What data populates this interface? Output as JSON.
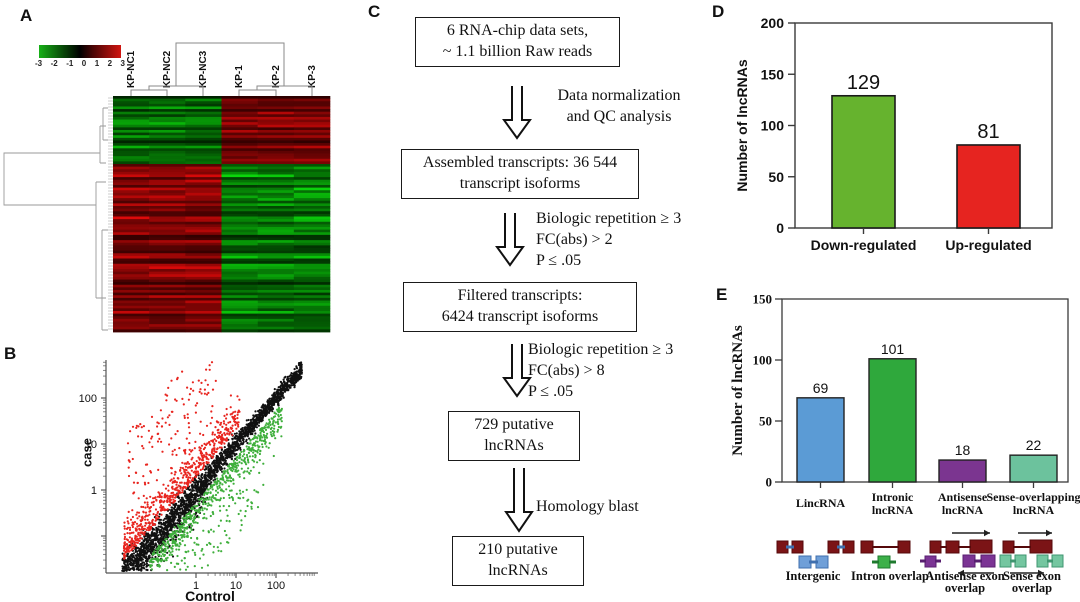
{
  "figure": {
    "panels": {
      "A": {
        "label": "A",
        "colorbar_ticks": [
          "-3",
          "-2",
          "-1",
          "0",
          "1",
          "2",
          "3"
        ],
        "columns": [
          "KP-NC1",
          "KP-NC2",
          "KP-NC3",
          "KP-1",
          "KP-2",
          "KP-3"
        ]
      },
      "B": {
        "label": "B",
        "xlabel": "Control",
        "ylabel": "case",
        "x_tick_labels": [
          "1",
          "10",
          "100"
        ],
        "y_tick_labels": [
          "1",
          "10",
          "100"
        ]
      },
      "C": {
        "label": "C",
        "boxes": [
          {
            "lines": [
              "6 RNA-chip data sets,",
              "~ 1.1 billion Raw reads"
            ]
          },
          {
            "lines": [
              "Assembled transcripts: 36 544",
              "transcript isoforms"
            ]
          },
          {
            "lines": [
              "Filtered transcripts:",
              "6424 transcript isoforms"
            ]
          },
          {
            "lines": [
              "729 putative",
              "lncRNAs"
            ]
          },
          {
            "lines": [
              "210 putative",
              "lncRNAs"
            ]
          }
        ],
        "arrows": [
          {
            "lines": [
              "Data normalization",
              "and QC analysis"
            ]
          },
          {
            "lines": [
              "Biologic repetition ≥ 3",
              "FC(abs) > 2",
              "P ≤ .05"
            ]
          },
          {
            "lines": [
              "Biologic repetition ≥ 3",
              "FC(abs) > 8",
              "P ≤ .05"
            ]
          },
          {
            "lines": [
              "Homology blast"
            ]
          }
        ]
      },
      "D": {
        "label": "D"
      },
      "E": {
        "label": "E",
        "diagrams": [
          {
            "name": "intergenic",
            "caption_lines": [
              "Intergenic"
            ]
          },
          {
            "name": "intron-overlap",
            "caption_lines": [
              "Intron overlap"
            ]
          },
          {
            "name": "antisense-exon-overlap",
            "caption_lines": [
              "Antisense exon",
              "overlap"
            ]
          },
          {
            "name": "sense-exon-overlap",
            "caption_lines": [
              "Sense exon",
              "overlap"
            ]
          }
        ]
      }
    }
  },
  "chart_data": [
    {
      "id": "panel-A-heatmap",
      "type": "heatmap",
      "columns": [
        "KP-NC1",
        "KP-NC2",
        "KP-NC3",
        "KP-1",
        "KP-2",
        "KP-3"
      ],
      "colorbar": {
        "min": -3,
        "max": 3,
        "ticks": [
          -3,
          -2,
          -1,
          0,
          1,
          2,
          3
        ],
        "low_color": "#17b117",
        "mid_color": "#000000",
        "high_color": "#d11510"
      },
      "row_blocks": [
        {
          "rows": 26,
          "left_group": "green",
          "right_group": "red",
          "meaning": "transcripts low in KP-NC1..3, high in KP-1..3"
        },
        {
          "rows": 64,
          "left_group": "red",
          "right_group": "green",
          "meaning": "transcripts high in KP-NC1..3, low in KP-1..3"
        }
      ],
      "column_clusters": [
        [
          "KP-NC1",
          "KP-NC2",
          "KP-NC3"
        ],
        [
          "KP-1",
          "KP-2",
          "KP-3"
        ]
      ]
    },
    {
      "id": "panel-B-scatter",
      "type": "scatter",
      "xlabel": "Control",
      "ylabel": "case",
      "x_scale": "log",
      "y_scale": "log",
      "x_ticks": [
        1,
        10,
        100
      ],
      "y_ticks": [
        1,
        10,
        100
      ],
      "x_range": [
        0.02,
        400
      ],
      "y_range": [
        0.02,
        400
      ],
      "series": [
        {
          "name": "unchanged",
          "color": "#111111",
          "n": 2300,
          "description": "dense band along the y=x diagonal"
        },
        {
          "name": "up-regulated",
          "color": "#e8251f",
          "n": 750,
          "description": "cloud above the diagonal"
        },
        {
          "name": "down-regulated",
          "color": "#3faf3c",
          "n": 750,
          "description": "cloud below the diagonal"
        }
      ]
    },
    {
      "id": "panel-D-bar",
      "type": "bar",
      "categories": [
        "Down-regulated",
        "Up-regulated"
      ],
      "values": [
        129,
        81
      ],
      "value_labels": [
        "129",
        "81"
      ],
      "bar_colors": [
        "#66b32e",
        "#e62420"
      ],
      "ylabel": "Number of lncRNAs",
      "xlabel": "",
      "ylim": [
        0,
        200
      ],
      "yticks": [
        0,
        50,
        100,
        150,
        200
      ],
      "grid": false,
      "legend": "none"
    },
    {
      "id": "panel-E-bar",
      "type": "bar",
      "categories": [
        "LincRNA",
        "Intronic\nlncRNA",
        "Antisense\nlncRNA",
        "Sense-overlapping\nlncRNA"
      ],
      "values": [
        69,
        101,
        18,
        22
      ],
      "value_labels": [
        "69",
        "101",
        "18",
        "22"
      ],
      "bar_colors": [
        "#5b9bd5",
        "#2fa83c",
        "#7b3590",
        "#6cc29d"
      ],
      "ylabel": "Number of lncRNAs",
      "xlabel": "",
      "ylim": [
        0,
        150
      ],
      "yticks": [
        0,
        50,
        100,
        150
      ],
      "grid": false,
      "legend": "none"
    }
  ]
}
